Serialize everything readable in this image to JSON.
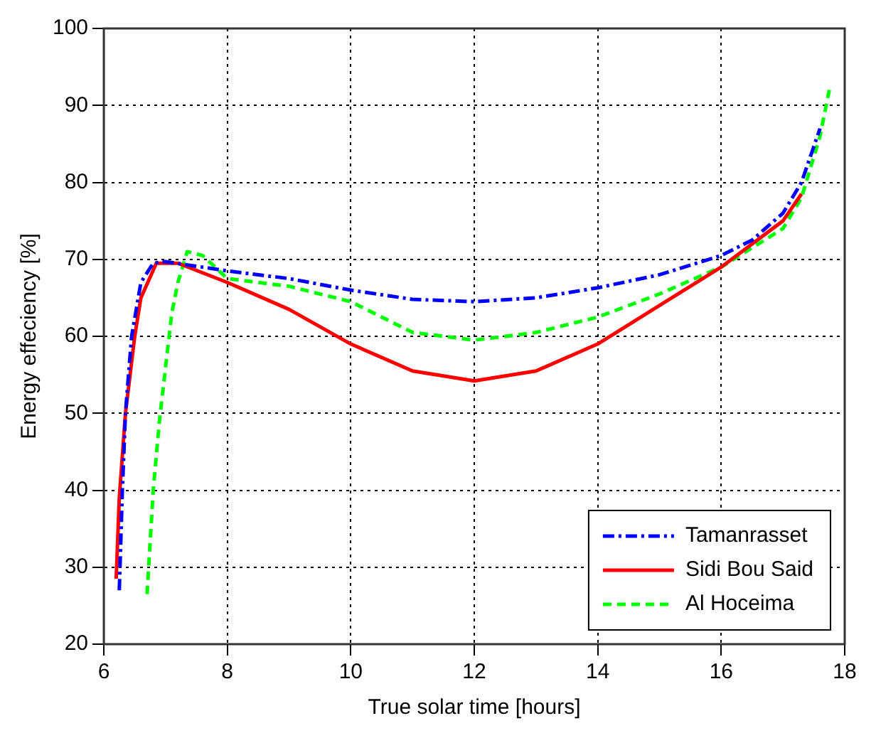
{
  "chart_data": {
    "type": "line",
    "xlabel": "True solar time [hours]",
    "ylabel": "Energy effeciency [%]",
    "xlim": [
      6,
      18
    ],
    "xticks": [
      6,
      8,
      10,
      12,
      14,
      16,
      18
    ],
    "ylim": [
      20,
      100
    ],
    "yticks": [
      20,
      30,
      40,
      50,
      60,
      70,
      80,
      90,
      100
    ],
    "grid": true,
    "legend": "bottom right",
    "series": [
      {
        "name": "Tamanrasset",
        "color": "#0000ff",
        "line_style": "dashdot",
        "x": [
          6.25,
          6.3,
          6.35,
          6.45,
          6.6,
          6.8,
          7,
          8,
          9,
          10,
          11,
          12,
          13,
          14,
          15,
          16,
          16.5,
          17,
          17.3,
          17.6
        ],
        "values": [
          27,
          40,
          50,
          60,
          67,
          69.5,
          69.7,
          68.5,
          67.5,
          66,
          64.8,
          64.5,
          65,
          66.3,
          68,
          70.5,
          72.5,
          76,
          80,
          87
        ]
      },
      {
        "name": "Sidi Bou Said",
        "color": "#ff0000",
        "line_style": "solid",
        "x": [
          6.2,
          6.25,
          6.35,
          6.5,
          6.6,
          6.85,
          7.2,
          8,
          9,
          10,
          11,
          12,
          13,
          14,
          15,
          16,
          17,
          17.3
        ],
        "values": [
          28.5,
          39,
          50,
          60,
          65,
          69.5,
          69.5,
          67,
          63.5,
          59,
          55.5,
          54.2,
          55.5,
          59,
          64,
          69,
          75,
          78.5
        ]
      },
      {
        "name": "Al Hoceima",
        "color": "#00ff00",
        "line_style": "dashed",
        "x": [
          6.7,
          6.8,
          6.9,
          7,
          7.1,
          7.2,
          7.35,
          7.6,
          8,
          9,
          10,
          11,
          12,
          13,
          14,
          15,
          16,
          17,
          17.3,
          17.6,
          17.75
        ],
        "values": [
          26.5,
          40,
          49,
          56,
          63,
          67,
          71,
          70.5,
          67.5,
          66.5,
          64.5,
          60.5,
          59.5,
          60.5,
          62.5,
          65.5,
          69,
          74,
          78,
          86,
          92
        ]
      }
    ]
  }
}
